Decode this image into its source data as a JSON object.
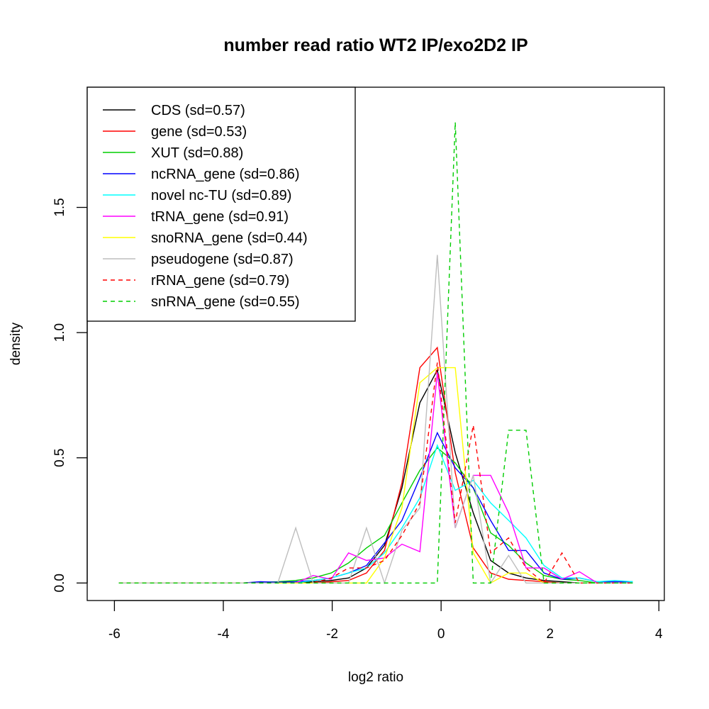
{
  "chart_data": {
    "type": "line",
    "title": "number read ratio WT2 IP/exo2D2 IP",
    "xlabel": "log2 ratio",
    "ylabel": "density",
    "xlim": [
      -6.5,
      4.1
    ],
    "ylim": [
      -0.07,
      1.98
    ],
    "xticks": [
      -6,
      -4,
      -2,
      0,
      2,
      4
    ],
    "xtick_labels": [
      "-6",
      "-4",
      "-2",
      "0",
      "2",
      "4"
    ],
    "yticks": [
      0.0,
      0.5,
      1.0,
      1.5
    ],
    "ytick_labels": [
      "0.0",
      "0.5",
      "1.0",
      "1.5"
    ],
    "grid": false,
    "legend_position": "top-left",
    "x": [
      -5.92,
      -5.6,
      -5.27,
      -4.95,
      -4.62,
      -4.3,
      -3.97,
      -3.65,
      -3.32,
      -3.0,
      -2.67,
      -2.35,
      -2.02,
      -1.7,
      -1.37,
      -1.04,
      -0.72,
      -0.39,
      -0.07,
      0.26,
      0.59,
      0.91,
      1.24,
      1.56,
      1.89,
      2.22,
      2.54,
      2.87,
      3.19,
      3.52
    ],
    "series": [
      {
        "name": "CDS (sd=0.57)",
        "color": "#000000",
        "dash": false,
        "values": [
          0,
          0,
          0,
          0,
          0,
          0,
          0,
          0,
          0,
          0,
          0,
          0.005,
          0.01,
          0.02,
          0.06,
          0.15,
          0.38,
          0.72,
          0.85,
          0.52,
          0.28,
          0.09,
          0.04,
          0.02,
          0.01,
          0.005,
          0,
          0,
          0,
          0
        ]
      },
      {
        "name": "gene (sd=0.53)",
        "color": "#ff0000",
        "dash": false,
        "values": [
          0,
          0,
          0,
          0,
          0,
          0,
          0,
          0,
          0,
          0,
          0,
          0,
          0.005,
          0.01,
          0.04,
          0.13,
          0.4,
          0.86,
          0.94,
          0.44,
          0.14,
          0.04,
          0.015,
          0.01,
          0.005,
          0,
          0,
          0,
          0,
          0
        ]
      },
      {
        "name": "XUT (sd=0.88)",
        "color": "#00cd00",
        "dash": false,
        "values": [
          0,
          0,
          0,
          0,
          0,
          0,
          0,
          0,
          0.003,
          0.005,
          0.01,
          0.02,
          0.04,
          0.08,
          0.14,
          0.19,
          0.32,
          0.45,
          0.54,
          0.48,
          0.38,
          0.2,
          0.15,
          0.08,
          0.03,
          0.015,
          0.01,
          0,
          0,
          0
        ]
      },
      {
        "name": "ncRNA_gene (sd=0.86)",
        "color": "#0000ff",
        "dash": false,
        "values": [
          0,
          0,
          0,
          0,
          0,
          0,
          0,
          0,
          0.005,
          0.003,
          0.005,
          0.01,
          0.02,
          0.04,
          0.07,
          0.16,
          0.25,
          0.42,
          0.6,
          0.46,
          0.38,
          0.25,
          0.13,
          0.13,
          0.04,
          0.015,
          0.02,
          0.005,
          0.005,
          0.005
        ]
      },
      {
        "name": "novel nc-TU (sd=0.89)",
        "color": "#00ffff",
        "dash": false,
        "values": [
          0,
          0,
          0,
          0,
          0,
          0,
          0,
          0,
          0,
          0,
          0,
          0.01,
          0.02,
          0.04,
          0.06,
          0.12,
          0.22,
          0.34,
          0.55,
          0.37,
          0.41,
          0.32,
          0.25,
          0.18,
          0.07,
          0.02,
          0.02,
          0.005,
          0.01,
          0.005
        ]
      },
      {
        "name": "tRNA_gene (sd=0.91)",
        "color": "#ff00ff",
        "dash": false,
        "values": [
          0,
          0,
          0,
          0,
          0,
          0,
          0,
          0,
          0,
          0,
          0,
          0.03,
          0.015,
          0.12,
          0.09,
          0.1,
          0.155,
          0.125,
          0.84,
          0.22,
          0.43,
          0.43,
          0.28,
          0.06,
          0.06,
          0.015,
          0.045,
          0,
          0,
          0
        ]
      },
      {
        "name": "snoRNA_gene (sd=0.44)",
        "color": "#ffff00",
        "dash": false,
        "values": [
          0,
          0,
          0,
          0,
          0,
          0,
          0,
          0,
          0,
          0,
          0,
          0,
          0,
          0,
          0,
          0.1,
          0.3,
          0.8,
          0.86,
          0.86,
          0.12,
          0,
          0.04,
          0.04,
          0,
          0,
          0,
          0,
          0,
          0
        ]
      },
      {
        "name": "pseudogene (sd=0.87)",
        "color": "#bebebe",
        "dash": false,
        "values": [
          0,
          0,
          0,
          0,
          0,
          0,
          0,
          0,
          0,
          0,
          0.22,
          0,
          0,
          0,
          0.22,
          0,
          0.21,
          0.3,
          1.31,
          0.22,
          0.43,
          0,
          0.11,
          0,
          0,
          0,
          0,
          0,
          0,
          0
        ]
      },
      {
        "name": "rRNA_gene (sd=0.79)",
        "color": "#ff0000",
        "dash": true,
        "values": [
          0,
          0,
          0,
          0,
          0,
          0,
          0,
          0,
          0,
          0,
          0,
          0,
          0.02,
          0.06,
          0.06,
          0.09,
          0.19,
          0.32,
          0.88,
          0.24,
          0.63,
          0.12,
          0.18,
          0.06,
          0,
          0.12,
          0,
          0,
          0,
          0
        ]
      },
      {
        "name": "snRNA_gene (sd=0.55)",
        "color": "#00cd00",
        "dash": true,
        "values": [
          0,
          0,
          0,
          0,
          0,
          0,
          0,
          0,
          0,
          0,
          0,
          0,
          0,
          0,
          0,
          0,
          0,
          0,
          0,
          1.84,
          0,
          0,
          0.61,
          0.61,
          0,
          0,
          0,
          0,
          0,
          0
        ]
      }
    ]
  }
}
